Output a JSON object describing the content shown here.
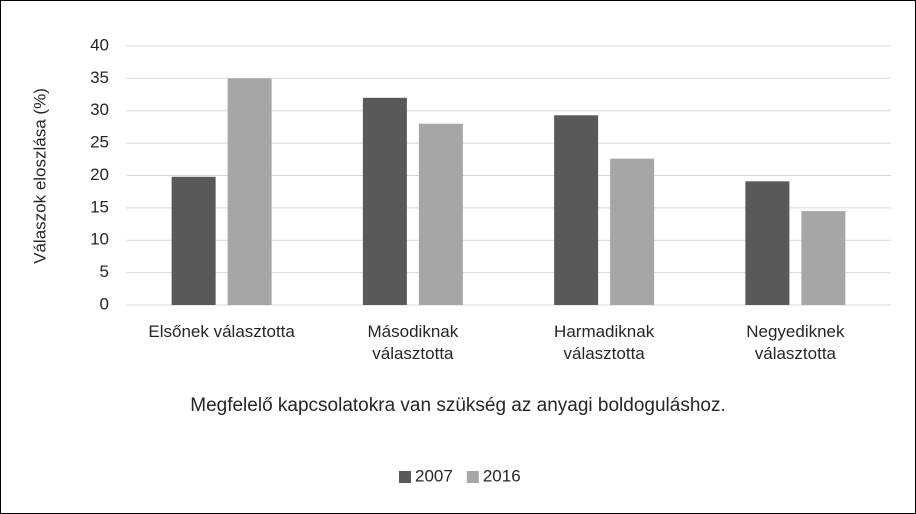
{
  "chart_data": {
    "type": "bar",
    "categories": [
      "Elsőnek választotta",
      "Másodiknak\nválasztotta",
      "Harmadiknak\nválasztotta",
      "Negyediknek\nválasztotta"
    ],
    "series": [
      {
        "name": "2007",
        "color": "#595959",
        "values": [
          19.8,
          32,
          29.3,
          19.1
        ]
      },
      {
        "name": "2016",
        "color": "#a6a6a6",
        "values": [
          35,
          28,
          22.6,
          14.5
        ]
      }
    ],
    "x_label": "Megfelelő kapcsolatokra van szükség az anyagi boldoguláshoz.",
    "y_label": "Válaszok eloszlása (%)",
    "ylim": [
      0,
      40
    ],
    "yticks": [
      0,
      5,
      10,
      15,
      20,
      25,
      30,
      35,
      40
    ],
    "grid": true,
    "legend": "bottom"
  }
}
